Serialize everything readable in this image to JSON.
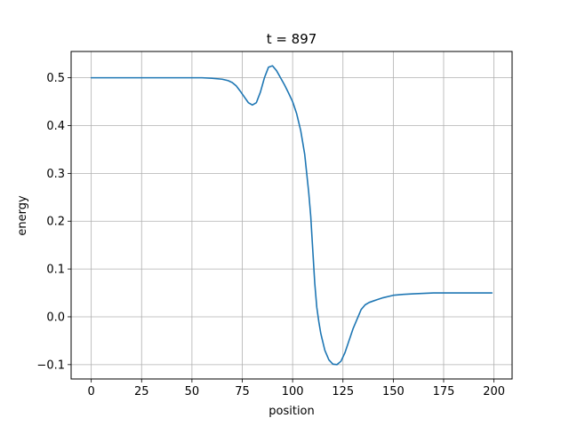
{
  "chart_data": {
    "type": "line",
    "title": "t = 897",
    "xlabel": "position",
    "ylabel": "energy",
    "xlim": [
      -10,
      209
    ],
    "ylim": [
      -0.13,
      0.555
    ],
    "x_ticks": [
      0,
      25,
      50,
      75,
      100,
      125,
      150,
      175,
      200
    ],
    "x_tick_labels": [
      "0",
      "25",
      "50",
      "75",
      "100",
      "125",
      "150",
      "175",
      "200"
    ],
    "y_ticks": [
      -0.1,
      0.0,
      0.1,
      0.2,
      0.3,
      0.4,
      0.5
    ],
    "y_tick_labels": [
      "−0.1",
      "0.0",
      "0.1",
      "0.2",
      "0.3",
      "0.4",
      "0.5"
    ],
    "grid": true,
    "line_color": "#1f77b4",
    "series": [
      {
        "x": [
          0,
          10,
          20,
          30,
          40,
          50,
          55,
          60,
          65,
          68,
          70,
          72,
          74,
          76,
          78,
          80,
          82,
          84,
          86,
          88,
          90,
          92,
          94,
          96,
          98,
          100,
          102,
          104,
          106,
          108,
          109,
          110,
          111,
          112,
          113,
          114,
          116,
          118,
          120,
          122,
          124,
          126,
          128,
          130,
          132,
          134,
          136,
          138,
          140,
          142,
          145,
          150,
          155,
          160,
          165,
          170,
          180,
          190,
          199
        ],
        "y": [
          0.5,
          0.5,
          0.5,
          0.5,
          0.5,
          0.5,
          0.5,
          0.499,
          0.497,
          0.494,
          0.49,
          0.483,
          0.472,
          0.46,
          0.448,
          0.443,
          0.448,
          0.47,
          0.5,
          0.522,
          0.525,
          0.515,
          0.5,
          0.485,
          0.468,
          0.45,
          0.425,
          0.39,
          0.34,
          0.26,
          0.21,
          0.14,
          0.07,
          0.02,
          -0.01,
          -0.035,
          -0.07,
          -0.09,
          -0.099,
          -0.1,
          -0.093,
          -0.075,
          -0.05,
          -0.025,
          -0.005,
          0.015,
          0.025,
          0.03,
          0.033,
          0.036,
          0.04,
          0.045,
          0.047,
          0.048,
          0.049,
          0.05,
          0.05,
          0.05,
          0.05
        ]
      }
    ]
  }
}
